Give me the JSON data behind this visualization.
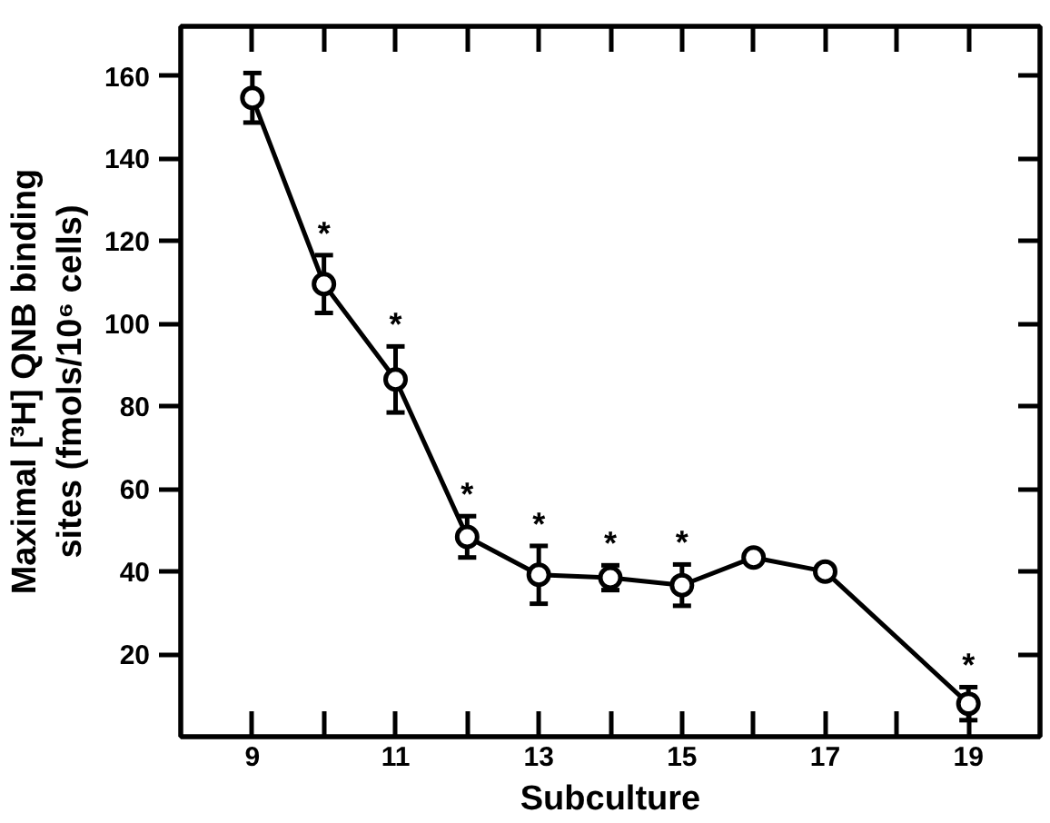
{
  "chart_data": {
    "type": "line",
    "xlabel": "Subculture",
    "ylabel": "Maximal [³H] QNB binding\nsites (fmols/10⁶ cells)",
    "x": [
      9,
      10,
      11,
      12,
      13,
      14,
      15,
      16,
      17,
      19
    ],
    "series": [
      {
        "color": "#000000",
        "values": [
          154.7,
          109.6,
          86.5,
          48.4,
          39.2,
          38.5,
          36.7,
          43.4,
          40,
          8
        ],
        "errors": [
          6,
          7,
          8,
          5,
          7,
          3,
          5,
          null,
          null,
          4
        ]
      }
    ],
    "xlim": [
      8,
      20
    ],
    "ylim": [
      0,
      172
    ],
    "xticks": [
      9,
      {
        "value": 10,
        "label": null
      },
      11,
      {
        "value": 12,
        "label": null
      },
      13,
      {
        "value": 14,
        "label": null
      },
      15,
      {
        "value": 16,
        "label": null
      },
      17,
      {
        "value": 18,
        "label": null
      },
      19
    ],
    "yticks": [
      20,
      40,
      60,
      80,
      100,
      120,
      140,
      160
    ],
    "marker": "circle",
    "line_style": "solid",
    "grid": false,
    "annotations": [
      {
        "text": "*",
        "x": 10,
        "y": 116.6
      },
      {
        "text": "*",
        "x": 11,
        "y": 94.5
      },
      {
        "text": "*",
        "x": 12,
        "y": 53.4
      },
      {
        "text": "*",
        "x": 13,
        "y": 46.2
      },
      {
        "text": "*",
        "x": 14,
        "y": 41.5
      },
      {
        "text": "*",
        "x": 15,
        "y": 41.7
      },
      {
        "text": "*",
        "x": 19,
        "y": 12
      }
    ]
  }
}
